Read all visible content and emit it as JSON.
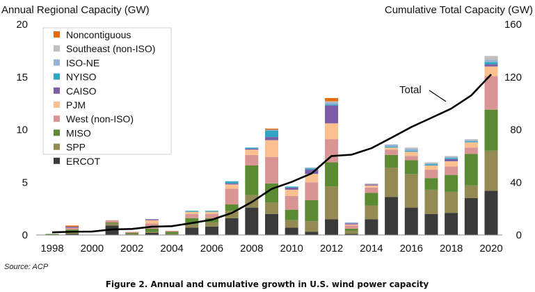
{
  "chart_data": {
    "type": "bar",
    "stacked": true,
    "left_axis_title": "Annual Regional Capacity (GW)",
    "right_axis_title": "Cumulative Total Capacity (GW)",
    "years": [
      1998,
      1999,
      2000,
      2001,
      2002,
      2003,
      2004,
      2005,
      2006,
      2007,
      2008,
      2009,
      2010,
      2011,
      2012,
      2013,
      2014,
      2015,
      2016,
      2017,
      2018,
      2019,
      2020
    ],
    "x_tick_labels": [
      "1998",
      "2000",
      "2002",
      "2004",
      "2006",
      "2008",
      "2010",
      "2012",
      "2014",
      "2016",
      "2018",
      "2020"
    ],
    "left_ylim": [
      0,
      20
    ],
    "left_ticks": [
      "0",
      "5",
      "10",
      "15",
      "20"
    ],
    "right_ylim": [
      0,
      160
    ],
    "right_ticks": [
      "0",
      "40",
      "80",
      "120",
      "160"
    ],
    "series": [
      {
        "name": "ERCOT",
        "color": "#3a3a3a",
        "values": [
          0,
          0.1,
          0,
          0.9,
          0,
          0.2,
          0,
          0.7,
          0.8,
          1.6,
          2.6,
          2.0,
          0.7,
          0.3,
          1.5,
          0.1,
          1.5,
          3.6,
          2.6,
          2.0,
          2.1,
          3.5,
          4.2
        ]
      },
      {
        "name": "SPP",
        "color": "#948a54",
        "values": [
          0,
          0.2,
          0,
          0.2,
          0.1,
          0.1,
          0.1,
          0.3,
          0.4,
          0.7,
          1.2,
          1.1,
          0.7,
          1.0,
          3.1,
          0.3,
          1.3,
          2.8,
          3.2,
          2.3,
          2.0,
          1.2,
          3.8
        ]
      },
      {
        "name": "MISO",
        "color": "#5a8a32",
        "values": [
          0.1,
          0.2,
          0,
          0.1,
          0.1,
          0.3,
          0.2,
          0.6,
          0.4,
          0.6,
          2.8,
          1.8,
          1.0,
          2.0,
          2.3,
          0.2,
          1.2,
          1.2,
          1.3,
          1.1,
          1.6,
          3.0,
          3.9
        ]
      },
      {
        "name": "West (non-ISO)",
        "color": "#d99594",
        "values": [
          0,
          0.2,
          0,
          0.2,
          0.1,
          0.5,
          0.1,
          0.4,
          0.4,
          1.5,
          1.0,
          2.5,
          1.3,
          1.7,
          2.2,
          0.3,
          0.5,
          0.5,
          0.4,
          0.8,
          0.8,
          0.6,
          3.2
        ]
      },
      {
        "name": "PJM",
        "color": "#fac090",
        "values": [
          0,
          0,
          0,
          0,
          0,
          0.3,
          0,
          0.2,
          0.2,
          0.4,
          0.5,
          1.6,
          0.6,
          0.8,
          1.5,
          0.1,
          0.2,
          0.2,
          0.4,
          0.4,
          0.5,
          0.5,
          0.9
        ]
      },
      {
        "name": "CAISO",
        "color": "#7b5da8",
        "values": [
          0,
          0.1,
          0,
          0,
          0,
          0.1,
          0,
          0,
          0,
          0.1,
          0.1,
          0.3,
          0.2,
          0.4,
          1.7,
          0.1,
          0.1,
          0,
          0,
          0,
          0.2,
          0,
          0.2
        ]
      },
      {
        "name": "NYISO",
        "color": "#31a6c2",
        "values": [
          0,
          0,
          0,
          0,
          0,
          0,
          0,
          0.1,
          0.1,
          0.2,
          0.1,
          0.6,
          0.1,
          0.1,
          0.1,
          0,
          0,
          0.1,
          0.1,
          0.1,
          0.1,
          0.1,
          0.2
        ]
      },
      {
        "name": "ISO-NE",
        "color": "#95b3d7",
        "values": [
          0,
          0,
          0,
          0,
          0,
          0,
          0,
          0,
          0,
          0,
          0,
          0.1,
          0,
          0.1,
          0.2,
          0.1,
          0,
          0.2,
          0.2,
          0.1,
          0.1,
          0.1,
          0.2
        ]
      },
      {
        "name": "Southeast (non-ISO)",
        "color": "#bfbfbf",
        "values": [
          0,
          0,
          0,
          0,
          0,
          0,
          0,
          0,
          0,
          0,
          0,
          0,
          0,
          0,
          0.1,
          0,
          0.1,
          0,
          0.1,
          0.1,
          0.1,
          0.1,
          0.4
        ]
      },
      {
        "name": "Noncontiguous",
        "color": "#e46c0a",
        "values": [
          0,
          0.1,
          0,
          0,
          0,
          0,
          0,
          0,
          0,
          0,
          0,
          0.1,
          0,
          0,
          0.3,
          0,
          0,
          0,
          0,
          0,
          0,
          0,
          0
        ]
      }
    ],
    "cumulative": {
      "name": "Total",
      "color": "#000000",
      "values": [
        2,
        2.5,
        2.6,
        4.2,
        4.6,
        6.3,
        6.7,
        9.1,
        11.6,
        16.7,
        25,
        35,
        40.3,
        46.8,
        60,
        61,
        65.9,
        73.9,
        82,
        89,
        96,
        106,
        122
      ]
    },
    "annotation": "Total",
    "source": "Source: ACP",
    "caption": "Figure 2. Annual and cumulative growth in U.S. wind power capacity"
  }
}
